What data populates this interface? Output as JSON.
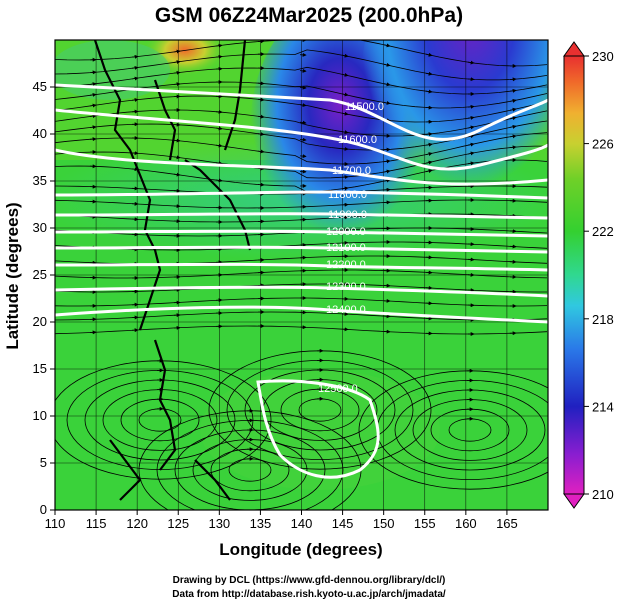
{
  "title": "GSM 06Z24Mar2025 (200.0hPa)",
  "chart_data": {
    "type": "heatmap",
    "title": "GSM 06Z24Mar2025 (200.0hPa)",
    "xlabel": "Longitude (degrees)",
    "ylabel": "Latitude  (degrees)",
    "xlim": [
      110,
      170
    ],
    "ylim": [
      0,
      50
    ],
    "x_ticks": [
      "110",
      "115",
      "120",
      "125",
      "130",
      "135",
      "140",
      "145",
      "150",
      "155",
      "160",
      "165"
    ],
    "y_ticks": [
      "0",
      "5",
      "10",
      "15",
      "20",
      "25",
      "30",
      "35",
      "40",
      "45"
    ],
    "colorbar": {
      "min": 210,
      "max": 230,
      "ticks": [
        "230",
        "226",
        "222",
        "218",
        "214",
        "210"
      ],
      "colors": [
        "#e020c0",
        "#7a20c8",
        "#2020c0",
        "#2a78e8",
        "#30c8e0",
        "#30d890",
        "#34d030",
        "#70d028",
        "#c8d030",
        "#f0b030",
        "#f06a2a",
        "#e83030"
      ]
    },
    "contour_labels": [
      "11500.0",
      "11600.0",
      "11700.0",
      "11800.0",
      "11900.0",
      "12000.0",
      "12100.0",
      "12200.0",
      "12300.0",
      "12400.0",
      "12500.0"
    ],
    "grid": true,
    "field": "temperature with height contours and wind streamlines"
  },
  "footer": {
    "line1": "Drawing by DCL (https://www.gfd-dennou.org/library/dcl/)",
    "line2": "Data from http://database.rish.kyoto-u.ac.jp/arch/jmadata/"
  }
}
